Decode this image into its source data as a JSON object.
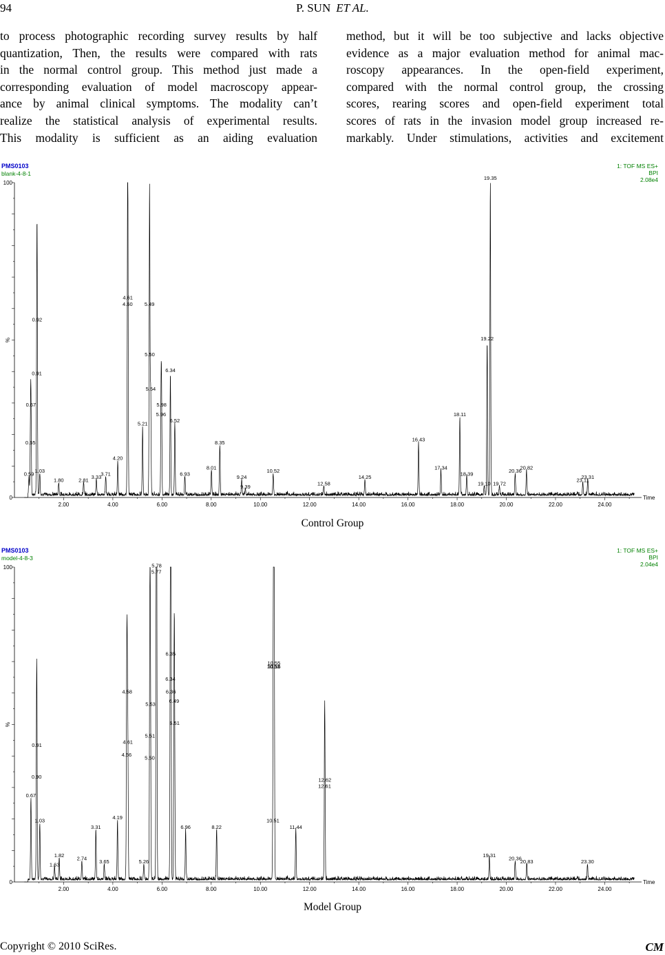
{
  "header": {
    "page_number": "94",
    "authors": "P. SUN",
    "etal": "ET AL."
  },
  "body": {
    "left_lines": [
      "to process photographic recording survey results by half",
      "quantization, Then, the results were compared with rats",
      "in the normal control group. This method just made a",
      "corresponding evaluation of model macroscopy appear-",
      "ance by animal clinical symptoms. The modality can’t",
      "realize the statistical analysis of experimental results.",
      "This modality is sufficient as an aiding evaluation"
    ],
    "right_lines": [
      "method, but it will be too subjective and lacks objective",
      "evidence as a major evaluation method for animal mac-",
      "roscopy appearances. In the open-field experiment,",
      "compared with the normal control group, the crossing",
      "scores, rearing scores and open-field experiment total",
      "scores of rats in the invasion model group increased re-",
      "markably. Under stimulations, activities and excitement"
    ]
  },
  "footer": {
    "copyright": "Copyright © 2010 SciRes.",
    "journal": "CM"
  },
  "colors": {
    "sample_blue": "#0000c8",
    "sample_green": "#008000",
    "trace": "#000000"
  },
  "chart_data": [
    {
      "type": "line",
      "caption": "Control Group",
      "sample_id": "PMS0103",
      "sample_name": "blank-4-8-1",
      "detector": "1: TOF MS ES+",
      "mode": "BPI",
      "intensity": "2.08e4",
      "ylabel": "%",
      "xlabel": "Time",
      "xlim": [
        0,
        25.5
      ],
      "ylim": [
        0,
        100
      ],
      "xticks": [
        "2.00",
        "4.00",
        "6.00",
        "8.00",
        "10.00",
        "12.00",
        "14.00",
        "16.00",
        "18.00",
        "20.00",
        "22.00",
        "24.00"
      ],
      "yticks": [
        "0",
        "100"
      ],
      "peaks": [
        {
          "x": 0.59,
          "y": 6,
          "label": "0.59"
        },
        {
          "x": 0.65,
          "y": 16,
          "label": "0.65"
        },
        {
          "x": 0.67,
          "y": 28,
          "label": "0.67"
        },
        {
          "x": 0.91,
          "y": 38,
          "label": "0.91"
        },
        {
          "x": 0.92,
          "y": 55,
          "label": "0.92"
        },
        {
          "x": 1.03,
          "y": 7,
          "label": "1.03"
        },
        {
          "x": 1.8,
          "y": 4,
          "label": "1.80"
        },
        {
          "x": 2.81,
          "y": 4,
          "label": "2.81"
        },
        {
          "x": 3.33,
          "y": 5,
          "label": "3.33"
        },
        {
          "x": 3.71,
          "y": 6,
          "label": "3.71"
        },
        {
          "x": 4.2,
          "y": 11,
          "label": "4.20"
        },
        {
          "x": 4.6,
          "y": 60,
          "label": "4.60"
        },
        {
          "x": 4.61,
          "y": 62,
          "label": "4.61"
        },
        {
          "x": 5.21,
          "y": 22,
          "label": "5.21"
        },
        {
          "x": 5.49,
          "y": 60,
          "label": "5.49"
        },
        {
          "x": 5.5,
          "y": 44,
          "label": "5.50"
        },
        {
          "x": 5.54,
          "y": 33,
          "label": "5.54"
        },
        {
          "x": 5.96,
          "y": 25,
          "label": "5.96"
        },
        {
          "x": 5.98,
          "y": 28,
          "label": "5.98"
        },
        {
          "x": 6.34,
          "y": 39,
          "label": "6.34"
        },
        {
          "x": 6.52,
          "y": 23,
          "label": "6.52"
        },
        {
          "x": 6.93,
          "y": 6,
          "label": "6.93"
        },
        {
          "x": 8.01,
          "y": 8,
          "label": "8.01"
        },
        {
          "x": 8.35,
          "y": 16,
          "label": "8.35"
        },
        {
          "x": 9.24,
          "y": 5,
          "label": "9.24"
        },
        {
          "x": 9.39,
          "y": 2,
          "label": "9.39"
        },
        {
          "x": 10.52,
          "y": 7,
          "label": "10.52"
        },
        {
          "x": 12.58,
          "y": 3,
          "label": "12.58"
        },
        {
          "x": 14.25,
          "y": 5,
          "label": "14.25"
        },
        {
          "x": 16.43,
          "y": 17,
          "label": "16.43"
        },
        {
          "x": 17.34,
          "y": 8,
          "label": "17.34"
        },
        {
          "x": 18.11,
          "y": 25,
          "label": "18.11"
        },
        {
          "x": 18.39,
          "y": 6,
          "label": "18.39"
        },
        {
          "x": 19.1,
          "y": 3,
          "label": "19.10"
        },
        {
          "x": 19.22,
          "y": 49,
          "label": "19.22"
        },
        {
          "x": 19.35,
          "y": 100,
          "label": "19.35"
        },
        {
          "x": 19.72,
          "y": 3,
          "label": "19.72"
        },
        {
          "x": 20.36,
          "y": 7,
          "label": "20.36"
        },
        {
          "x": 20.82,
          "y": 8,
          "label": "20.82"
        },
        {
          "x": 23.11,
          "y": 4,
          "label": "23.11"
        },
        {
          "x": 23.31,
          "y": 5,
          "label": "23.31"
        }
      ]
    },
    {
      "type": "line",
      "caption": "Model Group",
      "sample_id": "PMS0103",
      "sample_name": "model-4-8-3",
      "detector": "1: TOF MS ES+",
      "mode": "BPI",
      "intensity": "2.04e4",
      "ylabel": "%",
      "xlabel": "Time",
      "xlim": [
        0,
        25.5
      ],
      "ylim": [
        0,
        100
      ],
      "xticks": [
        "2.00",
        "4.00",
        "6.00",
        "8.00",
        "10.00",
        "12.00",
        "14.00",
        "16.00",
        "18.00",
        "20.00",
        "22.00",
        "24.00"
      ],
      "yticks": [
        "0",
        "100"
      ],
      "peaks": [
        {
          "x": 0.67,
          "y": 26,
          "label": "0.67"
        },
        {
          "x": 0.9,
          "y": 32,
          "label": "0.90"
        },
        {
          "x": 0.91,
          "y": 42,
          "label": "0.91"
        },
        {
          "x": 1.03,
          "y": 18,
          "label": "1.03"
        },
        {
          "x": 1.63,
          "y": 4,
          "label": "1.63"
        },
        {
          "x": 1.82,
          "y": 7,
          "label": "1.82"
        },
        {
          "x": 2.74,
          "y": 6,
          "label": "2.74"
        },
        {
          "x": 3.31,
          "y": 16,
          "label": "3.31"
        },
        {
          "x": 3.65,
          "y": 5,
          "label": "3.65"
        },
        {
          "x": 4.19,
          "y": 19,
          "label": "4.19"
        },
        {
          "x": 4.56,
          "y": 39,
          "label": "4.56"
        },
        {
          "x": 4.58,
          "y": 59,
          "label": "4.58"
        },
        {
          "x": 4.61,
          "y": 43,
          "label": "4.61"
        },
        {
          "x": 5.26,
          "y": 5,
          "label": "5.26"
        },
        {
          "x": 5.5,
          "y": 38,
          "label": "5.50"
        },
        {
          "x": 5.51,
          "y": 45,
          "label": "5.51"
        },
        {
          "x": 5.53,
          "y": 55,
          "label": "5.53"
        },
        {
          "x": 5.77,
          "y": 97,
          "label": "5.77"
        },
        {
          "x": 5.78,
          "y": 99,
          "label": "5.78"
        },
        {
          "x": 6.34,
          "y": 63,
          "label": "6.34"
        },
        {
          "x": 6.35,
          "y": 71,
          "label": "6.35"
        },
        {
          "x": 6.36,
          "y": 59,
          "label": "6.36"
        },
        {
          "x": 6.49,
          "y": 56,
          "label": "6.49"
        },
        {
          "x": 6.51,
          "y": 49,
          "label": "6.51"
        },
        {
          "x": 6.96,
          "y": 16,
          "label": "6.96"
        },
        {
          "x": 8.22,
          "y": 16,
          "label": "8.22"
        },
        {
          "x": 10.51,
          "y": 18,
          "label": "10.51"
        },
        {
          "x": 10.53,
          "y": 67,
          "label": "10.53"
        },
        {
          "x": 10.55,
          "y": 68,
          "label": "10.55"
        },
        {
          "x": 10.56,
          "y": 67,
          "label": "10.56"
        },
        {
          "x": 11.44,
          "y": 16,
          "label": "11.44"
        },
        {
          "x": 12.61,
          "y": 29,
          "label": "12.61"
        },
        {
          "x": 12.62,
          "y": 31,
          "label": "12.62"
        },
        {
          "x": 19.31,
          "y": 7,
          "label": "19.31"
        },
        {
          "x": 20.36,
          "y": 6,
          "label": "20.36"
        },
        {
          "x": 20.83,
          "y": 5,
          "label": "20.83"
        },
        {
          "x": 23.3,
          "y": 5,
          "label": "23.30"
        }
      ]
    }
  ]
}
